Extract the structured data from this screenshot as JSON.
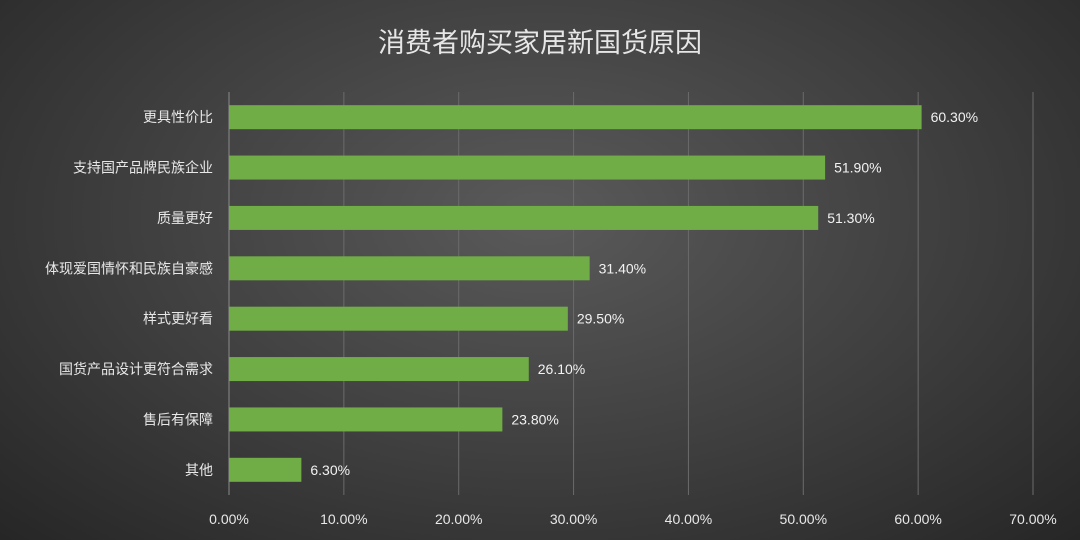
{
  "chart_data": {
    "type": "bar",
    "orientation": "horizontal",
    "title": "消费者购买家居新国货原因",
    "categories": [
      "更具性价比",
      "支持国产品牌民族企业",
      "质量更好",
      "体现爱国情怀和民族自豪感",
      "样式更好看",
      "国货产品设计更符合需求",
      "售后有保障",
      "其他"
    ],
    "values": [
      60.3,
      51.9,
      51.3,
      31.4,
      29.5,
      26.1,
      23.8,
      6.3
    ],
    "value_labels": [
      "60.30%",
      "51.90%",
      "51.30%",
      "31.40%",
      "29.50%",
      "26.10%",
      "23.80%",
      "6.30%"
    ],
    "x_ticks": [
      "0.00%",
      "10.00%",
      "20.00%",
      "30.00%",
      "40.00%",
      "50.00%",
      "60.00%",
      "70.00%"
    ],
    "xlim": [
      0,
      70
    ],
    "xlabel": "",
    "ylabel": "",
    "grid": "vertical",
    "legend": "none",
    "bar_color": "#70ad47",
    "grid_color": "#6b6b6b",
    "text_color": "#e8e8e8",
    "background_color": "#3e3e3e"
  }
}
